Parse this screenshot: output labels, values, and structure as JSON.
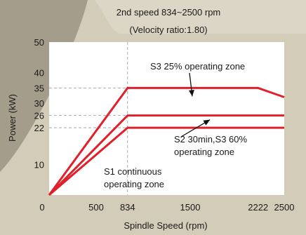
{
  "chart_data": {
    "type": "line",
    "title": "2nd speed 834~2500 rpm",
    "subtitle": "(Velocity ratio:1.80)",
    "xlabel": "Spindle Speed (rpm)",
    "ylabel": "Power (kW)",
    "x_ticks": [
      0,
      500,
      834,
      1500,
      2222,
      2500
    ],
    "y_ticks": [
      10,
      22,
      26,
      30,
      35,
      40,
      50
    ],
    "xlim": [
      0,
      2500
    ],
    "ylim": [
      0,
      50
    ],
    "grid": false,
    "colors": {
      "series": "#e0202a",
      "guide": "#999999"
    },
    "series": [
      {
        "name": "S3 25% operating zone",
        "x": [
          0,
          834,
          2222,
          2500
        ],
        "y": [
          0,
          35,
          35,
          32
        ]
      },
      {
        "name": "S2 30min,S3 60% operating zone",
        "x": [
          0,
          834,
          2500
        ],
        "y": [
          0,
          26,
          26
        ]
      },
      {
        "name": "S1 continuous operating zone",
        "x": [
          0,
          834,
          2500
        ],
        "y": [
          0,
          22,
          22
        ]
      }
    ],
    "annotations": [
      {
        "text_lines": [
          "S3 25% operating zone"
        ],
        "points_to": [
          1500,
          35
        ]
      },
      {
        "text_lines": [
          "S2 30min,S3 60%",
          "operating zone"
        ],
        "points_to": [
          1300,
          26
        ]
      },
      {
        "text_lines": [
          "S1 continuous",
          "operating zone"
        ]
      }
    ]
  }
}
